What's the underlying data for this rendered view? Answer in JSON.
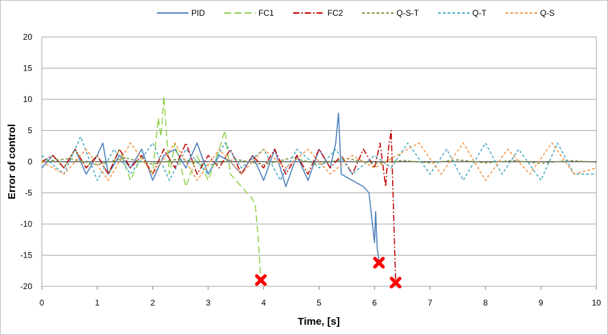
{
  "chart_data": {
    "type": "line",
    "title": "",
    "xlabel": "Time, [s]",
    "ylabel": "Error of control",
    "xlim": [
      0,
      10
    ],
    "ylim": [
      -20,
      20
    ],
    "x_ticks": [
      "0",
      "1",
      "2",
      "3",
      "4",
      "5",
      "6",
      "7",
      "8",
      "9",
      "10"
    ],
    "y_ticks": [
      "20",
      "15",
      "10",
      "5",
      "0",
      "-5",
      "-10",
      "-15",
      "-20"
    ],
    "grid": "horizontal",
    "legend_position": "top",
    "series": [
      {
        "name": "PID",
        "color": "#4f81bd",
        "dash": "solid",
        "x": [
          0,
          0.2,
          0.4,
          0.6,
          0.8,
          1.0,
          1.1,
          1.2,
          1.4,
          1.6,
          1.8,
          2.0,
          2.2,
          2.4,
          2.6,
          2.8,
          3.0,
          3.2,
          3.4,
          3.6,
          3.8,
          4.0,
          4.2,
          4.4,
          4.6,
          4.8,
          5.0,
          5.2,
          5.3,
          5.35,
          5.4,
          5.6,
          5.8,
          5.9,
          6.0,
          6.02,
          6.05,
          6.08
        ],
        "y": [
          -1,
          1,
          -1,
          2,
          -2,
          1,
          3,
          -2,
          1,
          -1,
          2,
          -3,
          1,
          2,
          -1,
          3,
          -2,
          1,
          0,
          -2,
          1,
          -3,
          2,
          -4,
          1,
          -3,
          2,
          -1,
          3,
          7.8,
          -2,
          -3,
          -4,
          -5,
          -13,
          -8,
          -14,
          -16
        ]
      },
      {
        "name": "FC1",
        "color": "#92d050",
        "dash": "long-dash",
        "x": [
          0,
          0.2,
          0.4,
          0.6,
          0.8,
          1.0,
          1.2,
          1.4,
          1.6,
          1.8,
          2.0,
          2.1,
          2.15,
          2.2,
          2.3,
          2.4,
          2.6,
          2.8,
          3.0,
          3.2,
          3.3,
          3.4,
          3.6,
          3.8,
          3.85,
          3.9,
          3.95
        ],
        "y": [
          0,
          1,
          -1,
          2,
          -1,
          1,
          -2,
          2,
          -3,
          1,
          -2,
          7,
          4,
          10.5,
          -2,
          3,
          -4,
          1,
          -3,
          2,
          5,
          -2,
          -4,
          -6,
          -7,
          -12,
          -19
        ]
      },
      {
        "name": "FC2",
        "color": "#c00000",
        "dash": "dash-dot",
        "x": [
          0,
          0.2,
          0.4,
          0.6,
          0.8,
          1.0,
          1.2,
          1.4,
          1.6,
          1.8,
          2.0,
          2.2,
          2.4,
          2.6,
          2.8,
          3.0,
          3.2,
          3.4,
          3.6,
          3.8,
          4.0,
          4.2,
          4.4,
          4.6,
          4.8,
          5.0,
          5.2,
          5.4,
          5.6,
          5.8,
          6.0,
          6.1,
          6.2,
          6.25,
          6.3,
          6.35,
          6.38
        ],
        "y": [
          0,
          1,
          -1,
          2,
          -1,
          1,
          -2,
          2,
          -1,
          1,
          -2,
          2,
          -1,
          3,
          -2,
          1,
          -1,
          2,
          -2,
          1,
          -1,
          2,
          -2,
          1,
          -2,
          2,
          -1,
          1,
          -2,
          2,
          -1,
          3,
          -4,
          2,
          5,
          -10,
          -19
        ]
      },
      {
        "name": "Q-S-T",
        "color": "#77933c",
        "dash": "short-dash",
        "x": [
          0,
          0.5,
          1,
          1.5,
          2,
          2.5,
          3,
          3.5,
          4,
          4.5,
          5,
          5.5,
          6,
          6.5,
          7,
          7.5,
          8,
          8.5,
          9,
          9.5,
          10
        ],
        "y": [
          0,
          0.5,
          -0.5,
          0.6,
          -0.4,
          0.5,
          -0.6,
          0.4,
          -0.5,
          0.6,
          -0.4,
          0.5,
          -0.3,
          0.2,
          -0.2,
          0.3,
          -0.2,
          0.2,
          -0.3,
          0.2,
          -0.1
        ]
      },
      {
        "name": "Q-T",
        "color": "#4bacc6",
        "dash": "short-dash",
        "x": [
          0,
          0.4,
          0.7,
          1.0,
          1.3,
          1.6,
          2.0,
          2.3,
          2.6,
          3.0,
          3.3,
          3.6,
          4.0,
          4.3,
          4.6,
          5.0,
          5.3,
          5.6,
          6.0,
          6.3,
          6.6,
          7.0,
          7.3,
          7.6,
          8.0,
          8.3,
          8.6,
          9.0,
          9.3,
          9.6,
          10
        ],
        "y": [
          1,
          -2,
          4,
          -3,
          2,
          -2,
          3,
          -3,
          2,
          -2,
          3,
          -1,
          2,
          -3,
          2,
          -1,
          2,
          -2,
          1,
          -1,
          3,
          -2,
          2,
          -3,
          3,
          -2,
          2,
          -3,
          3,
          -2,
          -2
        ]
      },
      {
        "name": "Q-S",
        "color": "#f79646",
        "dash": "short-dash",
        "x": [
          0,
          0.4,
          0.8,
          1.2,
          1.6,
          2.0,
          2.4,
          2.8,
          3.2,
          3.6,
          4.0,
          4.4,
          4.8,
          5.2,
          5.6,
          6.0,
          6.4,
          6.8,
          7.2,
          7.6,
          8.0,
          8.4,
          8.8,
          9.2,
          9.6,
          10
        ],
        "y": [
          0,
          -2,
          2,
          -3,
          3,
          -2,
          3,
          -3,
          2,
          -2,
          2,
          -1,
          2,
          -2,
          1,
          -1,
          1,
          3,
          -2,
          3,
          -3,
          2,
          -2,
          3,
          -2,
          -1
        ]
      }
    ],
    "failure_markers": [
      {
        "series": "FC1",
        "x": 3.95,
        "y": -19,
        "symbol": "✖",
        "color": "#ff0000"
      },
      {
        "series": "PID",
        "x": 6.08,
        "y": -16.2,
        "symbol": "✖",
        "color": "#ff0000"
      },
      {
        "series": "FC2",
        "x": 6.38,
        "y": -19.4,
        "symbol": "✖",
        "color": "#ff0000"
      }
    ]
  }
}
